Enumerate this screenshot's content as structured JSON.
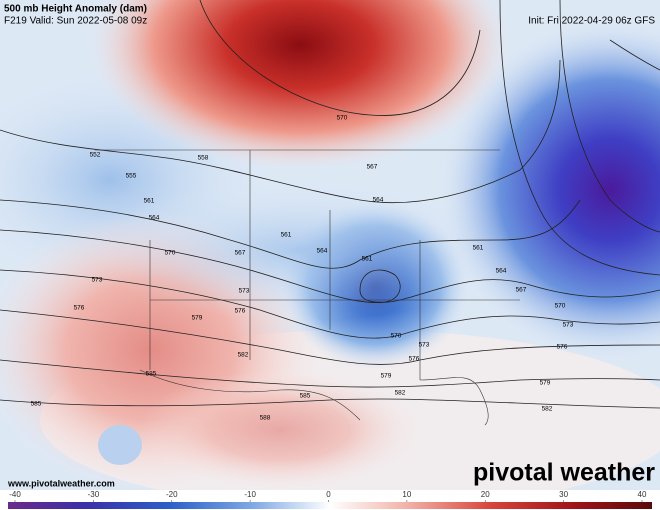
{
  "header": {
    "title": "500 mb Height Anomaly (dam)",
    "valid": "F219 Valid: Sun 2022-05-08 09z",
    "init": "Init: Fri 2022-04-29 06z GFS"
  },
  "footer": {
    "website": "www.pivotalweather.com",
    "logo": "pivotal weather"
  },
  "colorbar": {
    "lim": [
      -40,
      40
    ],
    "ticks": [
      -40,
      -30,
      -20,
      -10,
      0,
      10,
      20,
      30,
      40
    ]
  },
  "contour_labels": [
    "552",
    "555",
    "558",
    "561",
    "564",
    "567",
    "570",
    "573",
    "576",
    "579",
    "582",
    "585",
    "585",
    "588",
    "570",
    "567",
    "564",
    "561",
    "564",
    "561",
    "573",
    "576",
    "570",
    "573",
    "576",
    "579",
    "582",
    "585",
    "561",
    "564",
    "567",
    "570",
    "573",
    "576",
    "579",
    "582"
  ]
}
